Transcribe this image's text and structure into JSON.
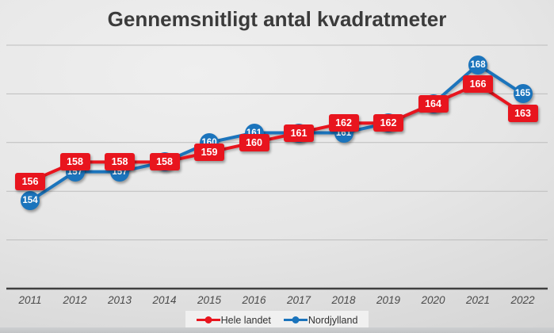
{
  "title": "Gennemsnitligt antal kvadratmeter",
  "chart_data": {
    "type": "line",
    "title": "Gennemsnitligt antal kvadratmeter",
    "x": [
      "2011",
      "2012",
      "2013",
      "2014",
      "2015",
      "2016",
      "2017",
      "2018",
      "2019",
      "2020",
      "2021",
      "2022"
    ],
    "series": [
      {
        "name": "Hele landet",
        "color": "#e8151e",
        "label_shape": "rounded-square",
        "values": [
          156,
          158,
          158,
          158,
          159,
          160,
          161,
          162,
          162,
          164,
          166,
          163
        ]
      },
      {
        "name": "Nordjylland",
        "color": "#1b74bc",
        "label_shape": "circle",
        "values": [
          154,
          157,
          157,
          158,
          160,
          161,
          161,
          161,
          162,
          164,
          168,
          165
        ]
      }
    ],
    "ylim": [
      145,
      170
    ],
    "grid": true,
    "gridline_values": [
      150,
      155,
      160,
      165,
      170
    ],
    "gridline_color": "#bdbdbd",
    "axis_line_color": "#3f3f3f",
    "data_labels": "on",
    "y_axis_tick_labels_visible": false,
    "legend_position": "bottom",
    "xlabel": "",
    "ylabel": ""
  }
}
